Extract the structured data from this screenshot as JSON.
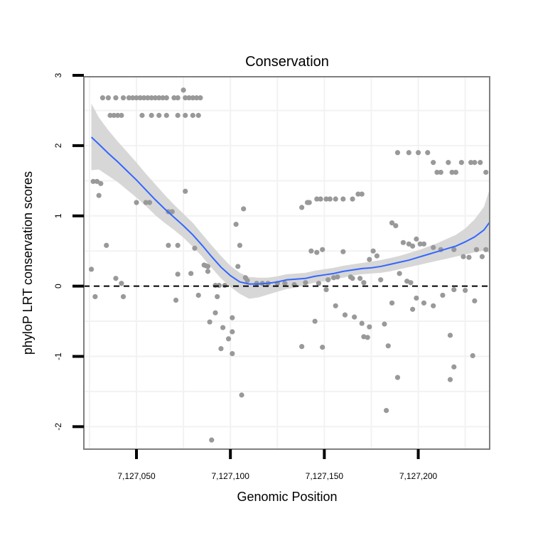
{
  "chart_data": {
    "type": "scatter",
    "title": "Conservation",
    "xlabel": "Genomic Position",
    "ylabel": "phyloP LRT conservation scores",
    "xlim": [
      7127022,
      7127238
    ],
    "ylim": [
      -2.32,
      2.98
    ],
    "x_ticks": [
      {
        "value": 7127050,
        "label": "7,127,050"
      },
      {
        "value": 7127100,
        "label": "7,127,100"
      },
      {
        "value": 7127150,
        "label": "7,127,150"
      },
      {
        "value": 7127200,
        "label": "7,127,200"
      }
    ],
    "y_ticks": [
      {
        "value": -2,
        "label": "-2"
      },
      {
        "value": -1,
        "label": "-1"
      },
      {
        "value": 0,
        "label": "0"
      },
      {
        "value": 1,
        "label": "1"
      },
      {
        "value": 2,
        "label": "2"
      },
      {
        "value": 3,
        "label": "3"
      }
    ],
    "grid": true,
    "reference_line": {
      "y": 0,
      "style": "dashed",
      "color": "#000000"
    },
    "point_color": "#999999",
    "smooth_color": "#3366ff",
    "band_color": "#d3d3d3",
    "points": [
      [
        7127032,
        2.68
      ],
      [
        7127035,
        2.68
      ],
      [
        7127039,
        2.68
      ],
      [
        7127043,
        2.68
      ],
      [
        7127046,
        2.68
      ],
      [
        7127048,
        2.68
      ],
      [
        7127050,
        2.68
      ],
      [
        7127052,
        2.68
      ],
      [
        7127054,
        2.68
      ],
      [
        7127056,
        2.68
      ],
      [
        7127058,
        2.68
      ],
      [
        7127060,
        2.68
      ],
      [
        7127062,
        2.68
      ],
      [
        7127064,
        2.68
      ],
      [
        7127066,
        2.68
      ],
      [
        7127070,
        2.68
      ],
      [
        7127072,
        2.68
      ],
      [
        7127076,
        2.68
      ],
      [
        7127078,
        2.68
      ],
      [
        7127080,
        2.68
      ],
      [
        7127082,
        2.68
      ],
      [
        7127084,
        2.68
      ],
      [
        7127075,
        2.79
      ],
      [
        7127036,
        2.43
      ],
      [
        7127038,
        2.43
      ],
      [
        7127040,
        2.43
      ],
      [
        7127042,
        2.43
      ],
      [
        7127053,
        2.43
      ],
      [
        7127058,
        2.43
      ],
      [
        7127062,
        2.43
      ],
      [
        7127066,
        2.43
      ],
      [
        7127072,
        2.43
      ],
      [
        7127076,
        2.43
      ],
      [
        7127080,
        2.43
      ],
      [
        7127083,
        2.43
      ],
      [
        7127027,
        1.49
      ],
      [
        7127029,
        1.49
      ],
      [
        7127031,
        1.46
      ],
      [
        7127030,
        1.29
      ],
      [
        7127076,
        1.35
      ],
      [
        7127050,
        1.19
      ],
      [
        7127055,
        1.19
      ],
      [
        7127057,
        1.19
      ],
      [
        7127067,
        1.06
      ],
      [
        7127069,
        1.06
      ],
      [
        7127034,
        0.58
      ],
      [
        7127067,
        0.58
      ],
      [
        7127072,
        0.58
      ],
      [
        7127081,
        0.54
      ],
      [
        7127086,
        0.3
      ],
      [
        7127088,
        0.28
      ],
      [
        7127026,
        0.24
      ],
      [
        7127072,
        0.17
      ],
      [
        7127079,
        0.18
      ],
      [
        7127039,
        0.11
      ],
      [
        7127042,
        0.04
      ],
      [
        7127083,
        -0.13
      ],
      [
        7127028,
        -0.15
      ],
      [
        7127043,
        -0.15
      ],
      [
        7127071,
        -0.2
      ],
      [
        7127087,
        0.29
      ],
      [
        7127088,
        0.21
      ],
      [
        7127092,
        0.01
      ],
      [
        7127094,
        0.01
      ],
      [
        7127097,
        0.01
      ],
      [
        7127093,
        -0.15
      ],
      [
        7127092,
        -0.38
      ],
      [
        7127089,
        -0.51
      ],
      [
        7127096,
        -0.59
      ],
      [
        7127099,
        -0.75
      ],
      [
        7127101,
        -0.65
      ],
      [
        7127101,
        -0.45
      ],
      [
        7127095,
        -0.89
      ],
      [
        7127101,
        -0.96
      ],
      [
        7127090,
        -2.19
      ],
      [
        7127106,
        -1.55
      ],
      [
        7127107,
        1.1
      ],
      [
        7127103,
        0.88
      ],
      [
        7127105,
        0.58
      ],
      [
        7127104,
        0.28
      ],
      [
        7127108,
        0.12
      ],
      [
        7127109,
        0.08
      ],
      [
        7127114,
        0.04
      ],
      [
        7127117,
        0.04
      ],
      [
        7127120,
        0.04
      ],
      [
        7127125,
        0.04
      ],
      [
        7127138,
        1.12
      ],
      [
        7127141,
        1.19
      ],
      [
        7127142,
        1.19
      ],
      [
        7127146,
        1.24
      ],
      [
        7127148,
        1.24
      ],
      [
        7127151,
        1.24
      ],
      [
        7127153,
        1.24
      ],
      [
        7127156,
        1.24
      ],
      [
        7127160,
        1.24
      ],
      [
        7127165,
        1.24
      ],
      [
        7127168,
        1.31
      ],
      [
        7127170,
        1.31
      ],
      [
        7127129,
        0.04
      ],
      [
        7127134,
        0.02
      ],
      [
        7127140,
        0.05
      ],
      [
        7127143,
        0.5
      ],
      [
        7127146,
        0.48
      ],
      [
        7127149,
        0.52
      ],
      [
        7127152,
        0.09
      ],
      [
        7127155,
        0.12
      ],
      [
        7127157,
        0.13
      ],
      [
        7127160,
        0.49
      ],
      [
        7127164,
        0.13
      ],
      [
        7127165,
        0.11
      ],
      [
        7127169,
        0.11
      ],
      [
        7127171,
        0.05
      ],
      [
        7127147,
        0.04
      ],
      [
        7127151,
        -0.05
      ],
      [
        7127156,
        -0.28
      ],
      [
        7127161,
        -0.41
      ],
      [
        7127166,
        -0.44
      ],
      [
        7127170,
        -0.53
      ],
      [
        7127174,
        -0.58
      ],
      [
        7127145,
        -0.5
      ],
      [
        7127138,
        -0.86
      ],
      [
        7127149,
        -0.87
      ],
      [
        7127171,
        -0.72
      ],
      [
        7127173,
        -0.73
      ],
      [
        7127174,
        0.38
      ],
      [
        7127176,
        0.5
      ],
      [
        7127178,
        0.43
      ],
      [
        7127180,
        0.09
      ],
      [
        7127182,
        -0.54
      ],
      [
        7127184,
        -0.85
      ],
      [
        7127186,
        -0.24
      ],
      [
        7127189,
        -1.3
      ],
      [
        7127183,
        -1.77
      ],
      [
        7127189,
        1.9
      ],
      [
        7127195,
        1.9
      ],
      [
        7127200,
        1.9
      ],
      [
        7127205,
        1.9
      ],
      [
        7127208,
        1.76
      ],
      [
        7127210,
        1.62
      ],
      [
        7127212,
        1.62
      ],
      [
        7127216,
        1.76
      ],
      [
        7127218,
        1.62
      ],
      [
        7127220,
        1.62
      ],
      [
        7127223,
        1.76
      ],
      [
        7127228,
        1.76
      ],
      [
        7127230,
        1.76
      ],
      [
        7127233,
        1.76
      ],
      [
        7127236,
        1.62
      ],
      [
        7127186,
        0.9
      ],
      [
        7127188,
        0.86
      ],
      [
        7127192,
        0.62
      ],
      [
        7127195,
        0.6
      ],
      [
        7127197,
        0.57
      ],
      [
        7127199,
        0.67
      ],
      [
        7127201,
        0.6
      ],
      [
        7127203,
        0.6
      ],
      [
        7127208,
        0.55
      ],
      [
        7127212,
        0.52
      ],
      [
        7127219,
        0.52
      ],
      [
        7127224,
        0.42
      ],
      [
        7127227,
        0.41
      ],
      [
        7127231,
        0.52
      ],
      [
        7127236,
        0.52
      ],
      [
        7127234,
        0.42
      ],
      [
        7127190,
        0.18
      ],
      [
        7127194,
        0.07
      ],
      [
        7127196,
        0.05
      ],
      [
        7127199,
        -0.17
      ],
      [
        7127203,
        -0.24
      ],
      [
        7127208,
        -0.28
      ],
      [
        7127213,
        -0.13
      ],
      [
        7127219,
        -0.05
      ],
      [
        7127225,
        -0.06
      ],
      [
        7127230,
        -0.21
      ],
      [
        7127197,
        -0.33
      ],
      [
        7127217,
        -0.7
      ],
      [
        7127219,
        -1.15
      ],
      [
        7127217,
        -1.33
      ],
      [
        7127229,
        -0.99
      ]
    ],
    "smooth_curve": [
      [
        7127026,
        2.12
      ],
      [
        7127030,
        2.02
      ],
      [
        7127035,
        1.89
      ],
      [
        7127040,
        1.77
      ],
      [
        7127045,
        1.64
      ],
      [
        7127050,
        1.51
      ],
      [
        7127055,
        1.37
      ],
      [
        7127060,
        1.23
      ],
      [
        7127065,
        1.1
      ],
      [
        7127070,
        0.98
      ],
      [
        7127075,
        0.86
      ],
      [
        7127080,
        0.73
      ],
      [
        7127085,
        0.58
      ],
      [
        7127090,
        0.42
      ],
      [
        7127095,
        0.27
      ],
      [
        7127100,
        0.15
      ],
      [
        7127105,
        0.06
      ],
      [
        7127110,
        0.03
      ],
      [
        7127115,
        0.03
      ],
      [
        7127120,
        0.04
      ],
      [
        7127125,
        0.06
      ],
      [
        7127130,
        0.09
      ],
      [
        7127135,
        0.1
      ],
      [
        7127140,
        0.11
      ],
      [
        7127145,
        0.14
      ],
      [
        7127150,
        0.16
      ],
      [
        7127155,
        0.18
      ],
      [
        7127160,
        0.21
      ],
      [
        7127165,
        0.23
      ],
      [
        7127170,
        0.25
      ],
      [
        7127175,
        0.26
      ],
      [
        7127180,
        0.28
      ],
      [
        7127185,
        0.31
      ],
      [
        7127190,
        0.34
      ],
      [
        7127195,
        0.37
      ],
      [
        7127200,
        0.41
      ],
      [
        7127205,
        0.45
      ],
      [
        7127210,
        0.49
      ],
      [
        7127215,
        0.53
      ],
      [
        7127220,
        0.57
      ],
      [
        7127225,
        0.63
      ],
      [
        7127230,
        0.7
      ],
      [
        7127235,
        0.8
      ],
      [
        7127238,
        0.91
      ]
    ],
    "band_upper": [
      [
        7127026,
        2.6
      ],
      [
        7127030,
        2.4
      ],
      [
        7127035,
        2.22
      ],
      [
        7127040,
        2.06
      ],
      [
        7127045,
        1.91
      ],
      [
        7127050,
        1.76
      ],
      [
        7127055,
        1.6
      ],
      [
        7127060,
        1.45
      ],
      [
        7127065,
        1.3
      ],
      [
        7127070,
        1.16
      ],
      [
        7127075,
        1.03
      ],
      [
        7127080,
        0.9
      ],
      [
        7127085,
        0.74
      ],
      [
        7127090,
        0.58
      ],
      [
        7127095,
        0.43
      ],
      [
        7127100,
        0.29
      ],
      [
        7127105,
        0.19
      ],
      [
        7127110,
        0.13
      ],
      [
        7127115,
        0.12
      ],
      [
        7127120,
        0.12
      ],
      [
        7127125,
        0.14
      ],
      [
        7127130,
        0.17
      ],
      [
        7127135,
        0.18
      ],
      [
        7127140,
        0.19
      ],
      [
        7127145,
        0.22
      ],
      [
        7127150,
        0.24
      ],
      [
        7127155,
        0.26
      ],
      [
        7127160,
        0.29
      ],
      [
        7127165,
        0.31
      ],
      [
        7127170,
        0.33
      ],
      [
        7127175,
        0.35
      ],
      [
        7127180,
        0.37
      ],
      [
        7127185,
        0.4
      ],
      [
        7127190,
        0.43
      ],
      [
        7127195,
        0.47
      ],
      [
        7127200,
        0.51
      ],
      [
        7127205,
        0.56
      ],
      [
        7127210,
        0.61
      ],
      [
        7127215,
        0.67
      ],
      [
        7127220,
        0.73
      ],
      [
        7127225,
        0.82
      ],
      [
        7127230,
        0.95
      ],
      [
        7127235,
        1.13
      ],
      [
        7127238,
        1.38
      ]
    ],
    "band_lower": [
      [
        7127026,
        1.65
      ],
      [
        7127030,
        1.66
      ],
      [
        7127035,
        1.57
      ],
      [
        7127040,
        1.48
      ],
      [
        7127045,
        1.37
      ],
      [
        7127050,
        1.26
      ],
      [
        7127055,
        1.14
      ],
      [
        7127060,
        1.01
      ],
      [
        7127065,
        0.9
      ],
      [
        7127070,
        0.8
      ],
      [
        7127075,
        0.69
      ],
      [
        7127080,
        0.56
      ],
      [
        7127085,
        0.42
      ],
      [
        7127090,
        0.26
      ],
      [
        7127095,
        0.11
      ],
      [
        7127100,
        -0.01
      ],
      [
        7127105,
        -0.11
      ],
      [
        7127110,
        -0.18
      ],
      [
        7127115,
        -0.16
      ],
      [
        7127120,
        -0.12
      ],
      [
        7127125,
        -0.08
      ],
      [
        7127130,
        -0.04
      ],
      [
        7127135,
        -0.02
      ],
      [
        7127140,
        0.02
      ],
      [
        7127145,
        0.05
      ],
      [
        7127150,
        0.07
      ],
      [
        7127155,
        0.1
      ],
      [
        7127160,
        0.12
      ],
      [
        7127165,
        0.15
      ],
      [
        7127170,
        0.17
      ],
      [
        7127175,
        0.18
      ],
      [
        7127180,
        0.19
      ],
      [
        7127185,
        0.21
      ],
      [
        7127190,
        0.24
      ],
      [
        7127195,
        0.27
      ],
      [
        7127200,
        0.3
      ],
      [
        7127205,
        0.33
      ],
      [
        7127210,
        0.36
      ],
      [
        7127215,
        0.39
      ],
      [
        7127220,
        0.42
      ],
      [
        7127225,
        0.45
      ],
      [
        7127230,
        0.48
      ],
      [
        7127235,
        0.51
      ],
      [
        7127238,
        0.47
      ]
    ]
  }
}
